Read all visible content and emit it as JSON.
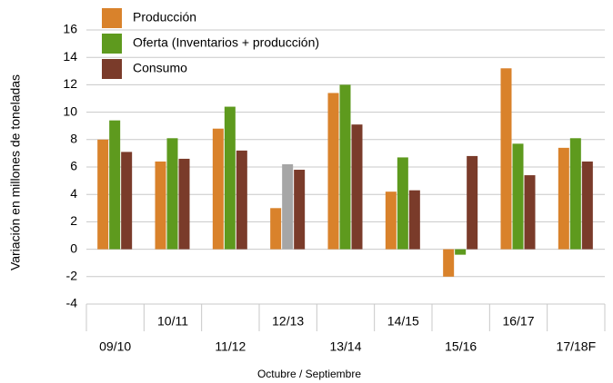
{
  "chart_data": {
    "type": "bar",
    "categories": [
      "09/10",
      "10/11",
      "11/12",
      "12/13",
      "13/14",
      "14/15",
      "15/16",
      "16/17",
      "17/18F"
    ],
    "series": [
      {
        "name": "Producción",
        "color": "#d9822b",
        "values": [
          8.0,
          6.4,
          8.8,
          3.0,
          11.4,
          4.2,
          -2.0,
          13.2,
          7.4
        ]
      },
      {
        "name": "Oferta (Inventarios + producción)",
        "color": "#5e9a1e",
        "values": [
          9.4,
          8.1,
          10.4,
          6.2,
          12.0,
          6.7,
          -0.4,
          7.7,
          8.1
        ],
        "point_colors": [
          {
            "index": 3,
            "color": "#a6a6a6"
          }
        ]
      },
      {
        "name": "Consumo",
        "color": "#7a3b2a",
        "values": [
          7.1,
          6.6,
          7.2,
          5.8,
          9.1,
          4.3,
          6.8,
          5.4,
          6.4
        ]
      }
    ],
    "y_label": "Variación en millones de toneladas",
    "x_label": "Octubre / Septiembre",
    "ylim": [
      -4,
      16
    ],
    "yticks": [
      -4,
      -2,
      0,
      2,
      4,
      6,
      8,
      10,
      12,
      14,
      16
    ],
    "grid": true,
    "legend": "top-left"
  }
}
